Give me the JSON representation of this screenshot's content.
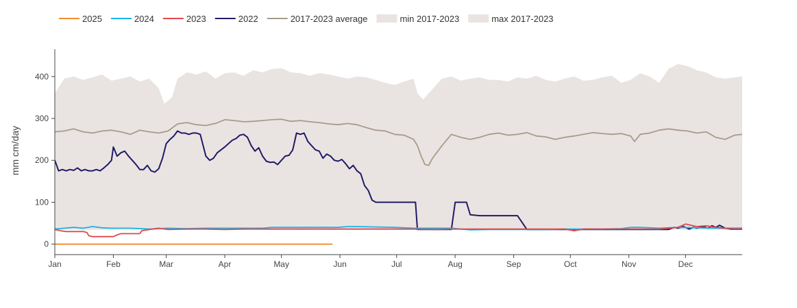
{
  "chart_data": {
    "type": "line",
    "ylabel": "mm cm/day",
    "xlabel": "",
    "ylim": [
      -25,
      465
    ],
    "x_range_days": [
      0,
      364
    ],
    "yticks": [
      0,
      100,
      200,
      300,
      400
    ],
    "xticks": [
      {
        "label": "Jan",
        "day": 0
      },
      {
        "label": "Feb",
        "day": 31
      },
      {
        "label": "Mar",
        "day": 59
      },
      {
        "label": "Apr",
        "day": 90
      },
      {
        "label": "May",
        "day": 120
      },
      {
        "label": "Jun",
        "day": 151
      },
      {
        "label": "Jul",
        "day": 181
      },
      {
        "label": "Aug",
        "day": 212
      },
      {
        "label": "Sep",
        "day": 243
      },
      {
        "label": "Oct",
        "day": 273
      },
      {
        "label": "Nov",
        "day": 304
      },
      {
        "label": "Dec",
        "day": 334
      }
    ],
    "legend": {
      "placement": "top-left",
      "entries": [
        {
          "label": "2025",
          "color": "#f58a2e",
          "kind": "line"
        },
        {
          "label": "2024",
          "color": "#1ab3e6",
          "kind": "line"
        },
        {
          "label": "2023",
          "color": "#e0474c",
          "kind": "line"
        },
        {
          "label": "2022",
          "color": "#1f1a66",
          "kind": "line"
        },
        {
          "label": "2017-2023 average",
          "color": "#a89a8a",
          "kind": "line"
        },
        {
          "label": "min 2017-2023",
          "color": "#e9e4e1",
          "kind": "band"
        },
        {
          "label": "max 2017-2023",
          "color": "#e9e4e1",
          "kind": "band"
        }
      ]
    },
    "band": {
      "name": "min/max 2017-2023",
      "color": "#e9e4e1",
      "x": [
        0,
        5,
        10,
        15,
        20,
        25,
        30,
        35,
        40,
        45,
        50,
        55,
        58,
        62,
        65,
        70,
        75,
        80,
        85,
        90,
        95,
        100,
        105,
        110,
        115,
        120,
        125,
        130,
        135,
        140,
        145,
        150,
        155,
        160,
        165,
        170,
        175,
        180,
        185,
        190,
        192,
        195,
        200,
        205,
        210,
        215,
        220,
        225,
        230,
        235,
        240,
        245,
        250,
        255,
        260,
        265,
        270,
        275,
        280,
        285,
        290,
        295,
        300,
        305,
        310,
        315,
        320,
        325,
        330,
        335,
        340,
        345,
        350,
        355,
        360,
        364
      ],
      "min": [
        35,
        34,
        35,
        33,
        34,
        34,
        33,
        34,
        34,
        35,
        33,
        34,
        35,
        34,
        35,
        34,
        35,
        35,
        34,
        35,
        35,
        34,
        35,
        35,
        34,
        35,
        35,
        34,
        35,
        35,
        34,
        35,
        35,
        34,
        35,
        35,
        34,
        35,
        34,
        35,
        34,
        34,
        35,
        34,
        35,
        34,
        35,
        34,
        35,
        34,
        35,
        35,
        34,
        35,
        34,
        35,
        35,
        34,
        35,
        34,
        35,
        34,
        35,
        34,
        35,
        35,
        34,
        35,
        35,
        34,
        35,
        34,
        35,
        34,
        35,
        35
      ],
      "max": [
        360,
        395,
        400,
        392,
        398,
        405,
        390,
        395,
        400,
        388,
        395,
        372,
        335,
        350,
        395,
        410,
        405,
        412,
        395,
        408,
        410,
        402,
        415,
        410,
        418,
        420,
        410,
        408,
        402,
        408,
        405,
        400,
        395,
        400,
        398,
        392,
        385,
        380,
        388,
        395,
        360,
        345,
        370,
        395,
        400,
        390,
        395,
        398,
        392,
        392,
        388,
        398,
        395,
        402,
        392,
        388,
        395,
        400,
        390,
        392,
        398,
        402,
        385,
        392,
        408,
        400,
        385,
        418,
        430,
        425,
        415,
        410,
        398,
        395,
        398,
        400
      ]
    },
    "series": [
      {
        "name": "2017-2023 average",
        "color": "#a89a8a",
        "x": [
          0,
          5,
          10,
          15,
          20,
          25,
          30,
          35,
          40,
          45,
          50,
          55,
          60,
          65,
          70,
          75,
          80,
          85,
          90,
          95,
          100,
          105,
          110,
          115,
          120,
          125,
          130,
          135,
          140,
          145,
          150,
          155,
          160,
          165,
          170,
          175,
          180,
          185,
          190,
          192,
          194,
          196,
          198,
          200,
          205,
          210,
          215,
          220,
          225,
          230,
          235,
          240,
          245,
          250,
          255,
          260,
          265,
          270,
          275,
          280,
          285,
          290,
          295,
          300,
          305,
          307,
          310,
          315,
          320,
          325,
          330,
          335,
          340,
          345,
          350,
          355,
          360,
          364
        ],
        "y": [
          268,
          270,
          275,
          268,
          265,
          270,
          272,
          268,
          262,
          272,
          268,
          265,
          270,
          287,
          290,
          285,
          283,
          288,
          297,
          295,
          292,
          293,
          295,
          297,
          298,
          293,
          295,
          292,
          290,
          287,
          285,
          288,
          285,
          278,
          272,
          270,
          262,
          260,
          250,
          235,
          210,
          190,
          188,
          205,
          235,
          262,
          255,
          250,
          255,
          262,
          265,
          260,
          262,
          266,
          258,
          256,
          250,
          255,
          258,
          262,
          266,
          264,
          262,
          264,
          258,
          245,
          262,
          265,
          272,
          275,
          272,
          270,
          265,
          268,
          255,
          250,
          260,
          262
        ]
      },
      {
        "name": "2022",
        "color": "#1f1a66",
        "x": [
          0,
          2,
          4,
          6,
          8,
          10,
          12,
          14,
          16,
          18,
          20,
          22,
          24,
          26,
          28,
          30,
          31,
          33,
          35,
          37,
          39,
          41,
          43,
          45,
          47,
          49,
          51,
          53,
          55,
          57,
          59,
          61,
          63,
          65,
          67,
          69,
          71,
          73,
          75,
          77,
          80,
          82,
          84,
          86,
          88,
          90,
          92,
          94,
          96,
          98,
          100,
          102,
          104,
          106,
          108,
          110,
          112,
          114,
          116,
          118,
          120,
          122,
          124,
          126,
          128,
          130,
          132,
          134,
          136,
          138,
          140,
          142,
          144,
          146,
          148,
          150,
          152,
          154,
          156,
          158,
          160,
          162,
          164,
          166,
          168,
          170,
          172,
          175,
          180,
          185,
          190,
          191,
          192,
          195,
          200,
          201,
          203,
          206,
          208,
          210,
          212,
          214,
          216,
          218,
          220,
          225,
          230,
          235,
          240,
          242,
          243,
          245,
          250,
          260,
          270,
          280,
          290,
          300,
          310,
          320,
          325,
          328,
          330,
          333,
          336,
          338,
          340,
          343,
          346,
          348,
          350,
          352,
          355,
          358,
          361,
          364
        ],
        "y": [
          200,
          175,
          178,
          175,
          178,
          176,
          182,
          175,
          178,
          175,
          175,
          178,
          175,
          182,
          190,
          200,
          232,
          210,
          218,
          222,
          210,
          200,
          190,
          178,
          178,
          188,
          175,
          172,
          180,
          205,
          240,
          250,
          258,
          270,
          265,
          265,
          262,
          265,
          265,
          262,
          210,
          200,
          205,
          218,
          225,
          232,
          240,
          248,
          252,
          260,
          262,
          255,
          235,
          222,
          230,
          210,
          198,
          195,
          196,
          190,
          200,
          210,
          212,
          225,
          265,
          262,
          265,
          245,
          235,
          225,
          222,
          205,
          215,
          210,
          200,
          198,
          202,
          192,
          180,
          188,
          175,
          168,
          140,
          128,
          105,
          100,
          100,
          100,
          100,
          100,
          100,
          100,
          35,
          35,
          35,
          35,
          35,
          35,
          35,
          35,
          100,
          100,
          100,
          100,
          70,
          68,
          68,
          68,
          68,
          68,
          68,
          68,
          35,
          35,
          35,
          35,
          35,
          35,
          35,
          35,
          35,
          40,
          38,
          42,
          36,
          40,
          38,
          42,
          38,
          44,
          40,
          45,
          38,
          36,
          36,
          36
        ]
      },
      {
        "name": "2024",
        "color": "#1ab3e6",
        "x": [
          0,
          5,
          10,
          15,
          20,
          25,
          30,
          40,
          50,
          60,
          70,
          80,
          90,
          100,
          110,
          115,
          120,
          130,
          140,
          150,
          155,
          160,
          170,
          180,
          190,
          200,
          210,
          215,
          220,
          230,
          240,
          250,
          260,
          270,
          280,
          290,
          300,
          305,
          310,
          320,
          330,
          340,
          350,
          360,
          364
        ],
        "y": [
          36,
          38,
          40,
          38,
          42,
          39,
          38,
          38,
          36,
          38,
          37,
          38,
          38,
          38,
          38,
          40,
          40,
          40,
          40,
          40,
          42,
          42,
          41,
          40,
          38,
          38,
          38,
          36,
          34,
          35,
          35,
          35,
          35,
          36,
          36,
          36,
          37,
          40,
          40,
          38,
          40,
          39,
          38,
          37,
          37
        ]
      },
      {
        "name": "2023",
        "color": "#e0474c",
        "x": [
          0,
          3,
          6,
          10,
          15,
          17,
          18,
          20,
          25,
          30,
          31,
          33,
          35,
          40,
          45,
          46,
          50,
          55,
          60,
          70,
          80,
          90,
          100,
          110,
          120,
          130,
          140,
          150,
          160,
          170,
          180,
          190,
          200,
          210,
          220,
          230,
          240,
          250,
          260,
          270,
          275,
          280,
          290,
          300,
          310,
          320,
          330,
          334,
          336,
          340,
          345,
          350,
          355,
          360,
          364
        ],
        "y": [
          35,
          32,
          30,
          30,
          30,
          28,
          20,
          18,
          18,
          18,
          18,
          22,
          25,
          25,
          25,
          32,
          35,
          38,
          35,
          36,
          36,
          35,
          36,
          36,
          36,
          36,
          36,
          36,
          36,
          36,
          36,
          36,
          35,
          36,
          36,
          36,
          36,
          36,
          36,
          36,
          32,
          36,
          36,
          36,
          36,
          36,
          40,
          48,
          46,
          42,
          44,
          40,
          38,
          38,
          38
        ]
      },
      {
        "name": "2025",
        "color": "#f58a2e",
        "x": [
          0,
          147
        ],
        "y": [
          0,
          0
        ]
      }
    ]
  }
}
